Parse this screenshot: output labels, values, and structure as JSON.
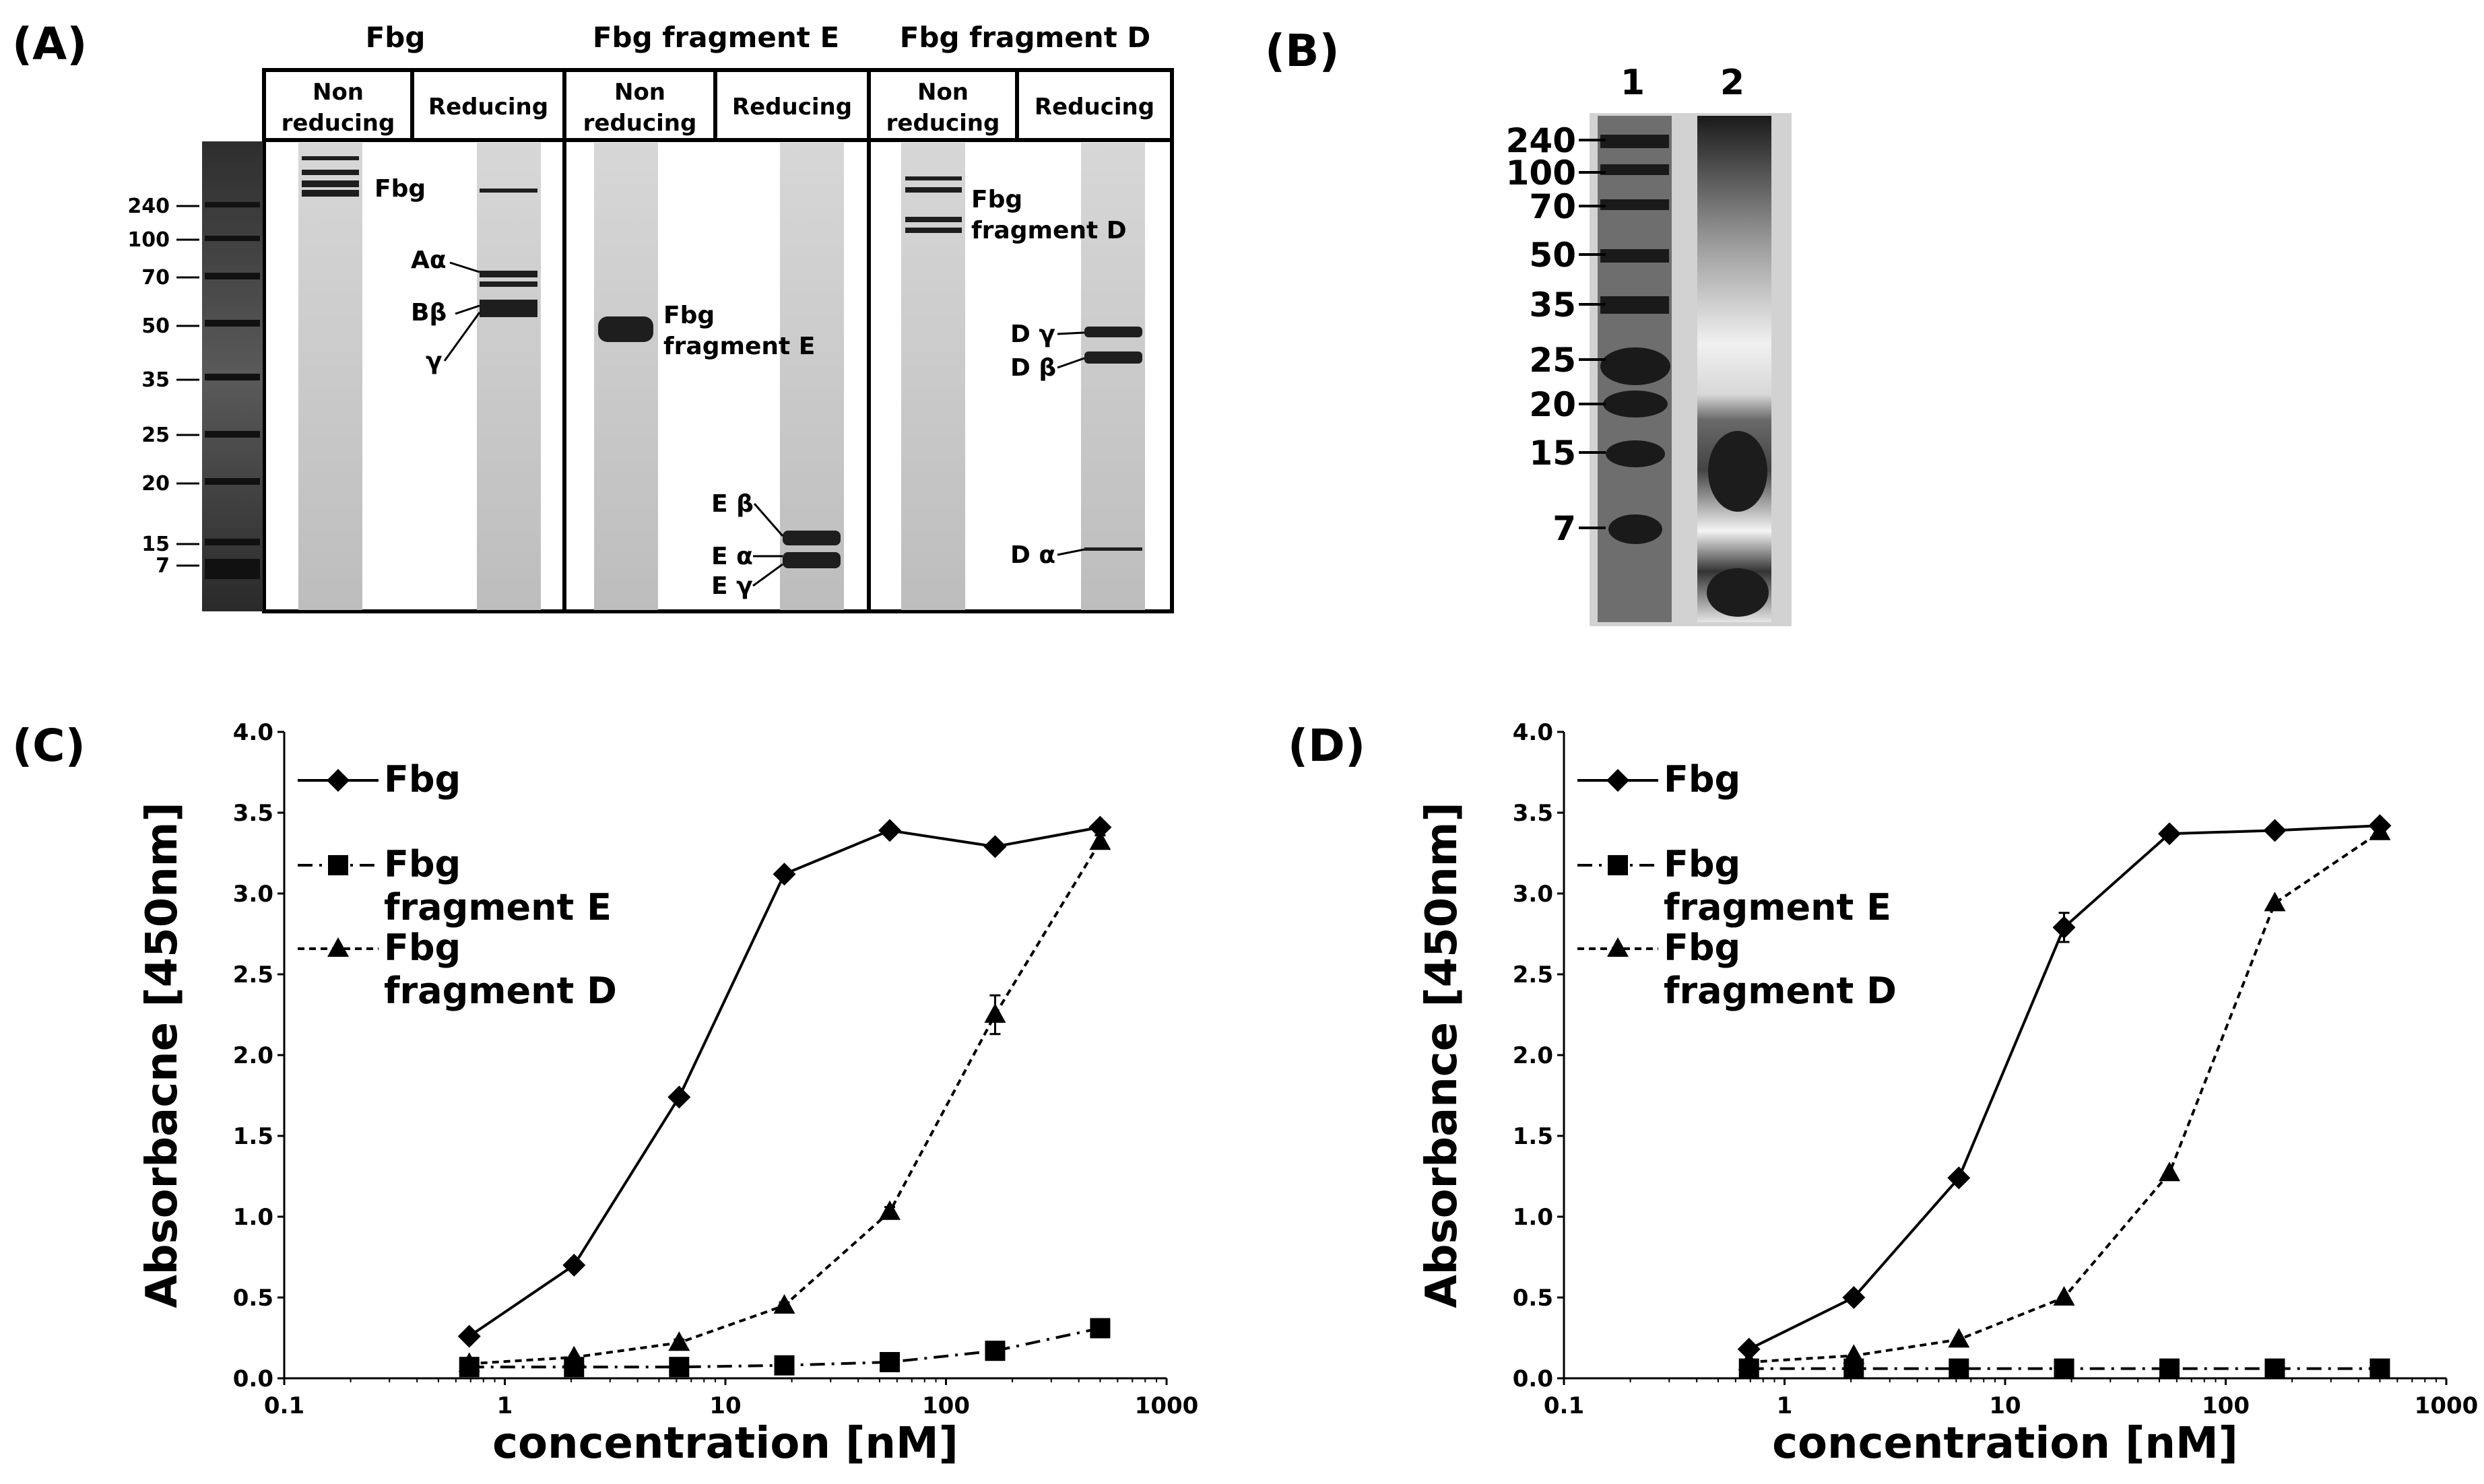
{
  "panel_a": {
    "label": "(A)",
    "groups": [
      "Fbg",
      "Fbg fragment E",
      "Fbg fragment D"
    ],
    "col_headers": [
      "Non reducing",
      "Reducing",
      "Non reducing",
      "Reducing",
      "Non reducing",
      "Reducing"
    ],
    "marker_labels": [
      "240",
      "100",
      "70",
      "50",
      "35",
      "25",
      "20",
      "15",
      "7"
    ],
    "band_labels": {
      "fbg": "Fbg",
      "a_alpha": "Aα",
      "b_beta": "Bβ",
      "gamma": "γ",
      "frag_e_line1": "Fbg",
      "frag_e_line2": "fragment E",
      "e_beta": "E β",
      "e_alpha": "E α",
      "e_gamma": "E γ",
      "frag_d_line1": "Fbg",
      "frag_d_line2": "fragment D",
      "d_gamma": "D γ",
      "d_beta": "D β",
      "d_alpha": "D α"
    }
  },
  "panel_b": {
    "label": "(B)",
    "lane_labels": [
      "1",
      "2"
    ],
    "marker_labels": [
      "240",
      "100",
      "70",
      "50",
      "35",
      "25",
      "20",
      "15",
      "7"
    ]
  },
  "chart_data": [
    {
      "panel": "(C)",
      "type": "line",
      "x_scale": "log",
      "xlabel": "concentration [nM]",
      "ylabel": "Absorbacne [450nm]",
      "xlim": [
        0.1,
        1000
      ],
      "ylim": [
        0,
        4.0
      ],
      "xticks": [
        "0.1",
        "1",
        "10",
        "100",
        "1000"
      ],
      "yticks": [
        "0.0",
        "0.5",
        "1.0",
        "1.5",
        "2.0",
        "2.5",
        "3.0",
        "3.5",
        "4.0"
      ],
      "x": [
        0.69,
        2.06,
        6.17,
        18.5,
        55.6,
        167,
        500
      ],
      "series": [
        {
          "name": "Fbg",
          "marker": "diamond",
          "line": "solid",
          "values": [
            0.26,
            0.7,
            1.74,
            3.12,
            3.39,
            3.29,
            3.41
          ]
        },
        {
          "name": "Fbg fragment E",
          "marker": "square",
          "line": "dashdot",
          "values": [
            0.07,
            0.07,
            0.07,
            0.08,
            0.1,
            0.17,
            0.31
          ]
        },
        {
          "name": "Fbg fragment D",
          "marker": "triangle",
          "line": "dotted",
          "values": [
            0.09,
            0.13,
            0.22,
            0.45,
            1.03,
            2.25,
            3.32
          ],
          "error": [
            0.01,
            0.01,
            0.02,
            0.02,
            0.03,
            0.12,
            0.04
          ]
        }
      ],
      "legend": [
        {
          "lines": [
            "Fbg"
          ]
        },
        {
          "lines": [
            "Fbg",
            "fragment E"
          ]
        },
        {
          "lines": [
            "Fbg",
            "fragment D"
          ]
        }
      ],
      "legend_position": "top-left"
    },
    {
      "panel": "(D)",
      "type": "line",
      "x_scale": "log",
      "xlabel": "concentration [nM]",
      "ylabel": "Absorbance [450nm]",
      "xlim": [
        0.1,
        1000
      ],
      "ylim": [
        0,
        4.0
      ],
      "xticks": [
        "0.1",
        "1",
        "10",
        "100",
        "1000"
      ],
      "yticks": [
        "0.0",
        "0.5",
        "1.0",
        "1.5",
        "2.0",
        "2.5",
        "3.0",
        "3.5",
        "4.0"
      ],
      "x": [
        0.69,
        2.06,
        6.17,
        18.5,
        55.6,
        167,
        500
      ],
      "series": [
        {
          "name": "Fbg",
          "marker": "diamond",
          "line": "solid",
          "values": [
            0.18,
            0.5,
            1.24,
            2.79,
            3.37,
            3.39,
            3.42
          ],
          "error": [
            0.01,
            0.01,
            0.02,
            0.09,
            0.02,
            0.02,
            0.02
          ]
        },
        {
          "name": "Fbg fragment E",
          "marker": "square",
          "line": "dashdot",
          "values": [
            0.06,
            0.06,
            0.06,
            0.06,
            0.06,
            0.06,
            0.06
          ]
        },
        {
          "name": "Fbg fragment D",
          "marker": "triangle",
          "line": "dotted",
          "values": [
            0.1,
            0.14,
            0.24,
            0.5,
            1.27,
            2.94,
            3.38
          ]
        }
      ],
      "legend": [
        {
          "lines": [
            "Fbg"
          ]
        },
        {
          "lines": [
            "Fbg",
            "fragment E"
          ]
        },
        {
          "lines": [
            "Fbg",
            "fragment D"
          ]
        }
      ],
      "legend_position": "top-left"
    }
  ]
}
